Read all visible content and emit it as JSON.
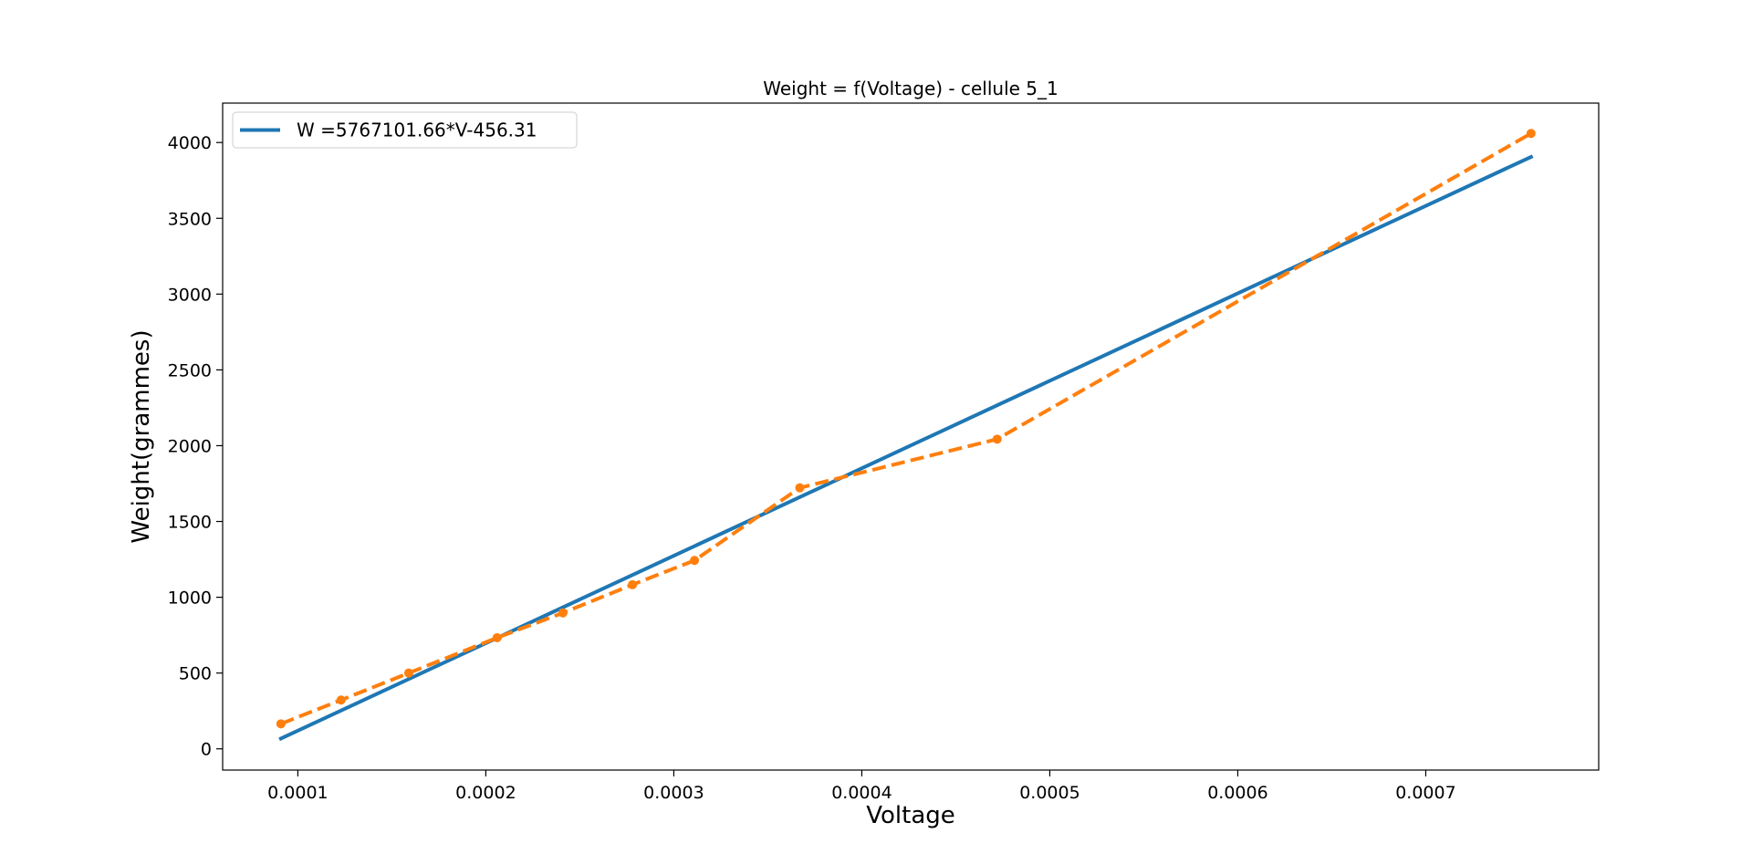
{
  "chart_data": {
    "type": "line",
    "title": "Weight = f(Voltage) - cellule 5_1",
    "xlabel": "Voltage",
    "ylabel": "Weight(grammes)",
    "xlim": [
      6e-05,
      0.000792
    ],
    "ylim": [
      -140,
      4260
    ],
    "x_ticks": [
      0.0001,
      0.0002,
      0.0003,
      0.0004,
      0.0005,
      0.0006,
      0.0007
    ],
    "x_tick_labels": [
      "0.0001",
      "0.0002",
      "0.0003",
      "0.0004",
      "0.0005",
      "0.0006",
      "0.0007"
    ],
    "y_ticks": [
      0,
      500,
      1000,
      1500,
      2000,
      2500,
      3000,
      3500,
      4000
    ],
    "y_tick_labels": [
      "0",
      "500",
      "1000",
      "1500",
      "2000",
      "2500",
      "3000",
      "3500",
      "4000"
    ],
    "grid": false,
    "legend_position": "upper-left",
    "series": [
      {
        "name": "W =5767101.66*V-456.31",
        "style": "solid",
        "color": "#1f77b4",
        "x": [
          9.1e-05,
          0.000756
        ],
        "y": [
          68,
          3905
        ],
        "in_legend": true
      },
      {
        "style": "dashed",
        "color": "#ff7f0e",
        "markers": true,
        "x": [
          9.1e-05,
          0.000123,
          0.000159,
          0.000206,
          0.000241,
          0.000278,
          0.000311,
          0.000367,
          0.000472,
          0.000756
        ],
        "y": [
          165,
          322,
          500,
          733,
          897,
          1083,
          1243,
          1722,
          2043,
          4060
        ],
        "in_legend": false
      }
    ]
  }
}
